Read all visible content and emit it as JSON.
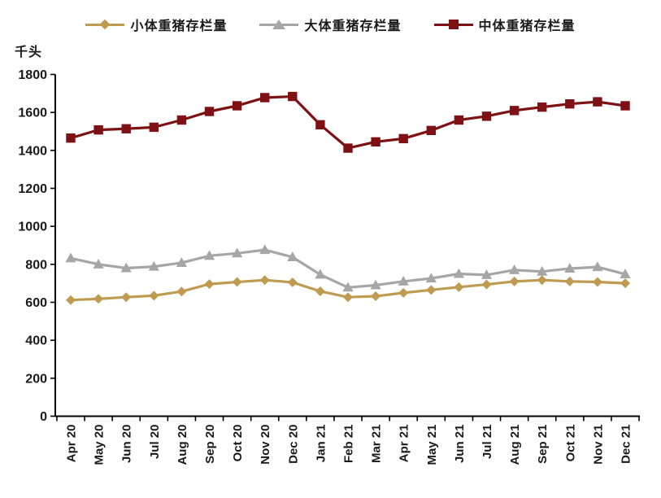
{
  "chart_data": {
    "type": "line",
    "title": "",
    "ylabel": "千头",
    "xlabel": "",
    "ylim": [
      0,
      1800
    ],
    "ytick_step": 200,
    "grid": false,
    "legend_position": "top",
    "categories": [
      "Apr 20",
      "May 20",
      "Jun 20",
      "Jul 20",
      "Aug 20",
      "Sep 20",
      "Oct 20",
      "Nov 20",
      "Dec 20",
      "Jan 21",
      "Feb 21",
      "Mar 21",
      "Apr 21",
      "May 21",
      "Jun 21",
      "Jul 21",
      "Aug 21",
      "Sep 21",
      "Oct 21",
      "Nov 21",
      "Dec 21"
    ],
    "series": [
      {
        "name": "小体重猪存栏量",
        "marker": "diamond",
        "color": "#BE9B50",
        "values": [
          612,
          618,
          627,
          635,
          657,
          696,
          707,
          717,
          705,
          658,
          627,
          632,
          650,
          665,
          680,
          694,
          710,
          717,
          710,
          707,
          700
        ]
      },
      {
        "name": "大体重猪存栏量",
        "marker": "triangle",
        "color": "#A6A6A6",
        "values": [
          832,
          800,
          780,
          788,
          808,
          845,
          858,
          876,
          838,
          746,
          678,
          690,
          710,
          726,
          750,
          744,
          770,
          762,
          778,
          786,
          748
        ]
      },
      {
        "name": "中体重猪存栏量",
        "marker": "square",
        "color": "#7D1114",
        "values": [
          1465,
          1508,
          1514,
          1522,
          1560,
          1605,
          1635,
          1678,
          1684,
          1535,
          1412,
          1445,
          1462,
          1505,
          1560,
          1580,
          1610,
          1628,
          1645,
          1656,
          1635
        ]
      }
    ],
    "ytick_labels": [
      "0",
      "200",
      "400",
      "600",
      "800",
      "1000",
      "1200",
      "1400",
      "1600",
      "1800"
    ],
    "axis_color": "#000000",
    "text_color": "#1a1a1a"
  }
}
